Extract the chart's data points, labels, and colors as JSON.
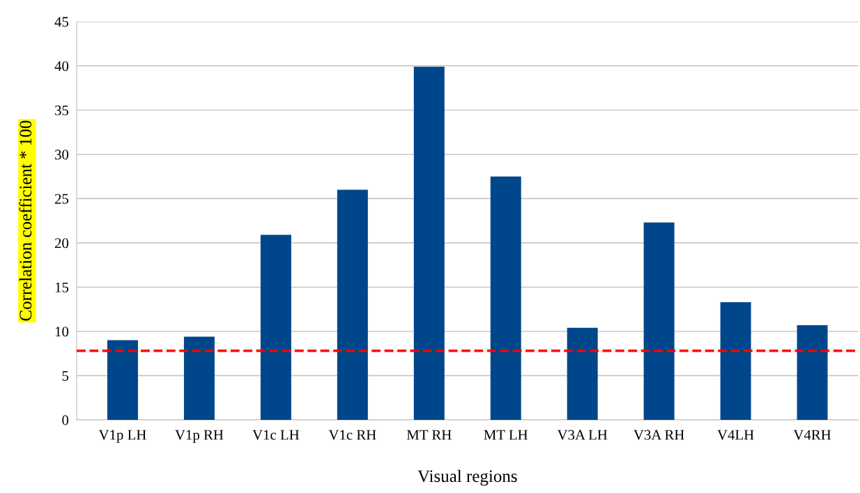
{
  "chart_data": {
    "type": "bar",
    "xlabel": "Visual regions",
    "ylabel": "Correlation coefficient * 100",
    "categories": [
      "V1p LH",
      "V1p RH",
      "V1c LH",
      "V1c RH",
      "MT RH",
      "MT LH",
      "V3A LH",
      "V3A RH",
      "V4LH",
      "V4RH"
    ],
    "values": [
      9.0,
      9.4,
      20.9,
      26.0,
      39.9,
      27.5,
      10.4,
      22.3,
      13.3,
      10.7
    ],
    "color": "#00468b",
    "ylim": [
      0,
      45
    ],
    "yticks": [
      0,
      5,
      10,
      15,
      20,
      25,
      30,
      35,
      40,
      45
    ],
    "grid": "y",
    "ref_lines": [
      {
        "axis": "y",
        "value": 7.8,
        "color": "#ff0000",
        "line_style": "dashed"
      }
    ]
  }
}
